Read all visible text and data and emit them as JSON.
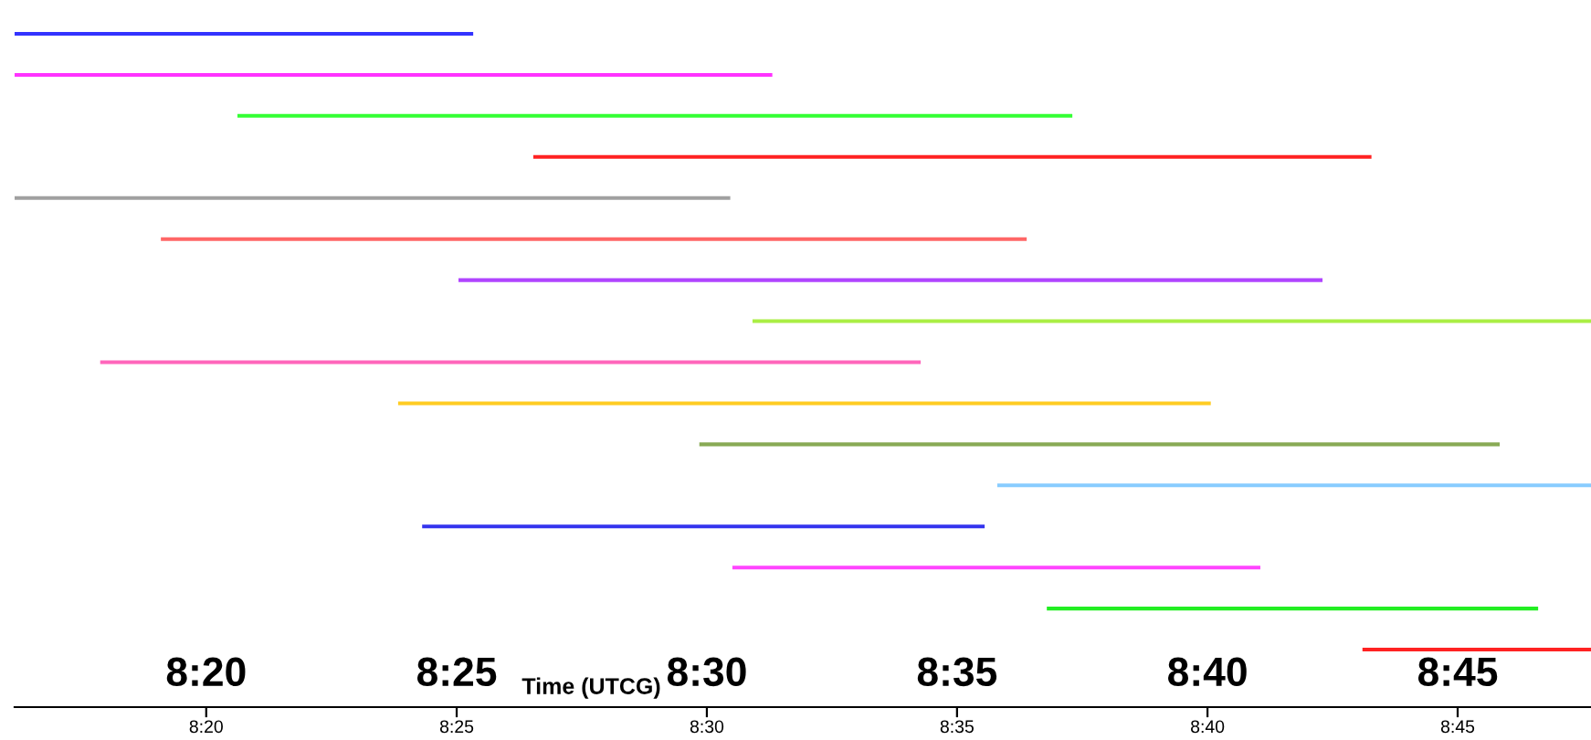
{
  "chart_data": {
    "type": "bar",
    "orientation": "horizontal",
    "xlabel": null,
    "x2label": "Time (UTCG)",
    "categories": [
      null,
      null,
      null,
      null,
      null,
      null,
      null,
      null,
      null,
      null,
      null,
      null,
      null,
      null,
      null,
      null
    ],
    "base": [
      8.2695,
      8.2695,
      8.3437,
      8.4422,
      8.2695,
      8.3182,
      8.4173,
      8.5152,
      8.298,
      8.3972,
      8.4975,
      8.5967,
      8.4052,
      8.5085,
      8.6132,
      8.7183
    ],
    "values": [
      0.1527,
      0.2523,
      0.278,
      0.2791,
      0.2383,
      0.2883,
      0.2877,
      0.2792,
      0.2732,
      0.2706,
      0.2665,
      0.1977,
      0.1873,
      0.1758,
      0.1636,
      0.0761
    ],
    "colors": [
      "#3333ff",
      "#ff33ff",
      "#33ff33",
      "#ff2222",
      "#a0a0a0",
      "#ff6666",
      "#b044ff",
      "#aaee44",
      "#ff66bb",
      "#ffcc22",
      "#88aa55",
      "#88ccff",
      "#3333ee",
      "#ff44ff",
      "#22ee22",
      "#ff2222"
    ],
    "xlim": [
      8.2695,
      8.7944
    ],
    "xticks": [
      {
        "value": 8.3333,
        "label": "8:20"
      },
      {
        "value": 8.4167,
        "label": "8:25"
      },
      {
        "value": 8.5,
        "label": "8:30"
      },
      {
        "value": 8.5833,
        "label": "8:35"
      },
      {
        "value": 8.6667,
        "label": "8:40"
      },
      {
        "value": 8.75,
        "label": "8:45"
      }
    ],
    "x2lim": [
      8.2695,
      8.7944
    ],
    "x2ticks": [
      {
        "value": 8.3333,
        "label": "8:20"
      },
      {
        "value": 8.4167,
        "label": "8:25"
      },
      {
        "value": 8.5,
        "label": "8:30"
      },
      {
        "value": 8.5833,
        "label": "8:35"
      },
      {
        "value": 8.6667,
        "label": "8:40"
      },
      {
        "value": 8.75,
        "label": "8:45"
      }
    ],
    "grid": false,
    "legend": false
  }
}
